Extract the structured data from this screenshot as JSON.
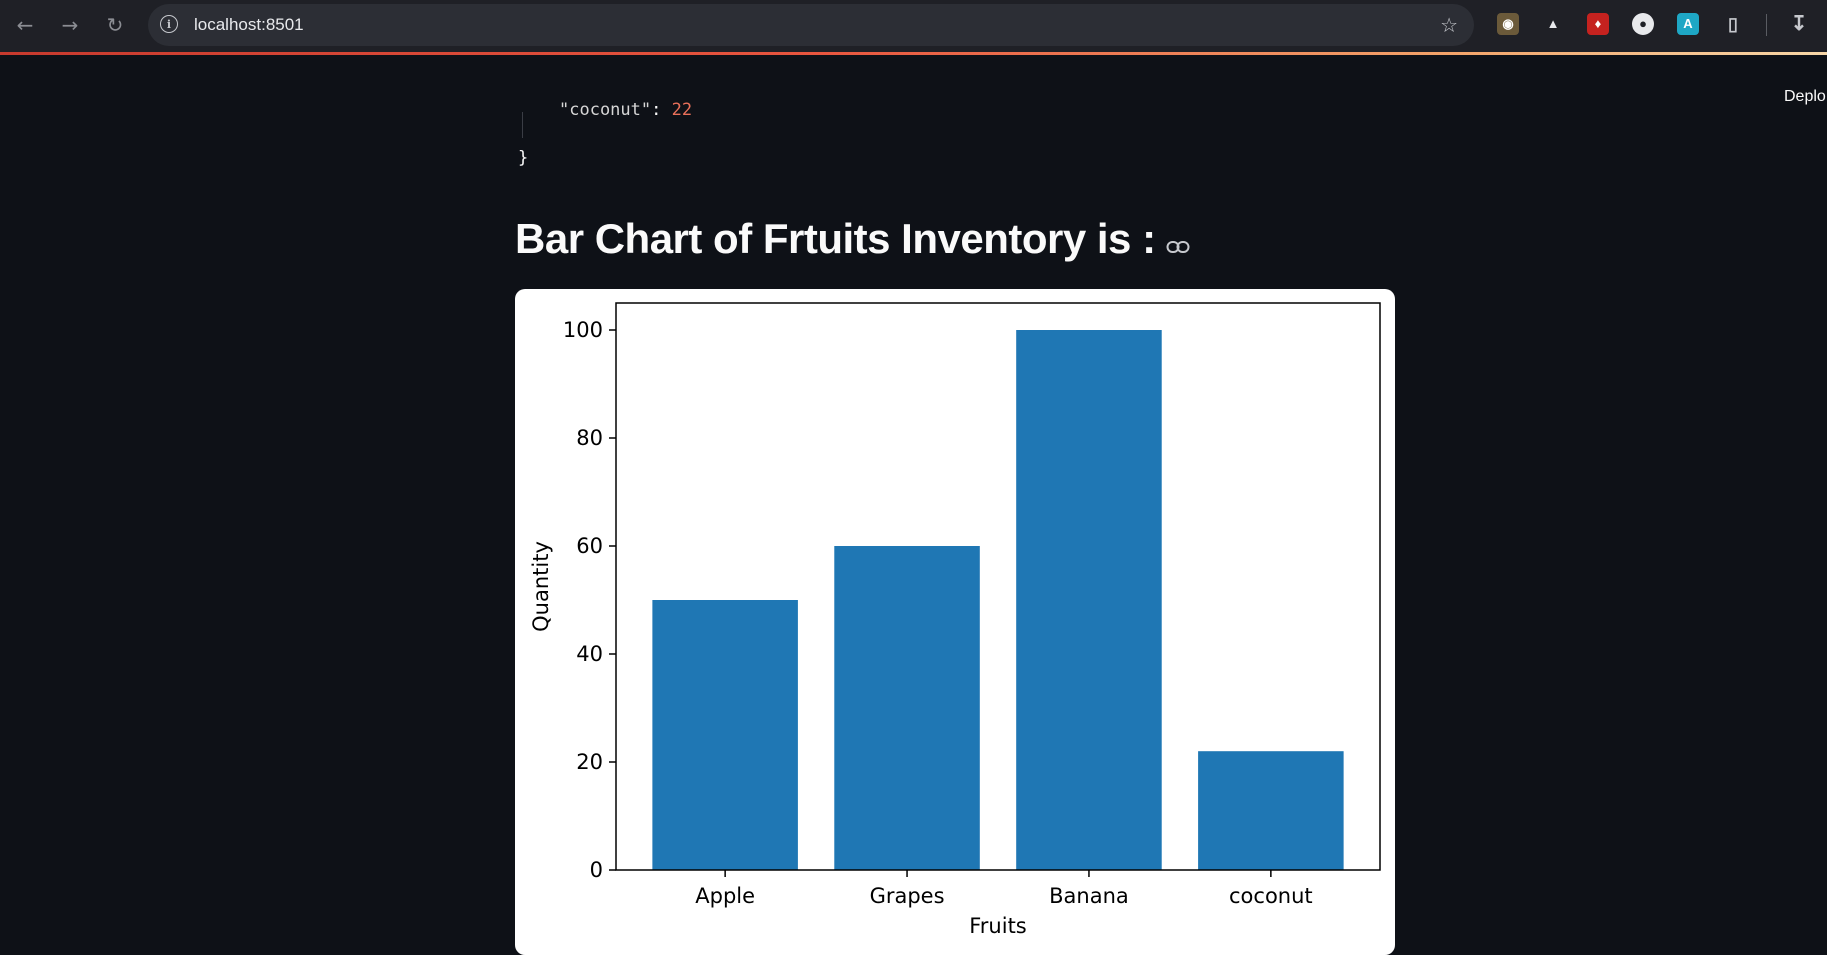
{
  "browser": {
    "url": "localhost:8501"
  },
  "app": {
    "deploy_label": "Deplo",
    "json_tail": {
      "key": "\"coconut\"",
      "sep": ": ",
      "value": "22",
      "closing": "}"
    },
    "heading": "Bar Chart of Frtuits Inventory is :"
  },
  "chart_data": {
    "type": "bar",
    "categories": [
      "Apple",
      "Grapes",
      "Banana",
      "coconut"
    ],
    "values": [
      50,
      60,
      100,
      22
    ],
    "title": "",
    "xlabel": "Fruits",
    "ylabel": "Quantity",
    "ylim": [
      0,
      105
    ],
    "yticks": [
      0,
      20,
      40,
      60,
      80,
      100
    ],
    "bar_color": "#1f77b4",
    "grid": false
  }
}
